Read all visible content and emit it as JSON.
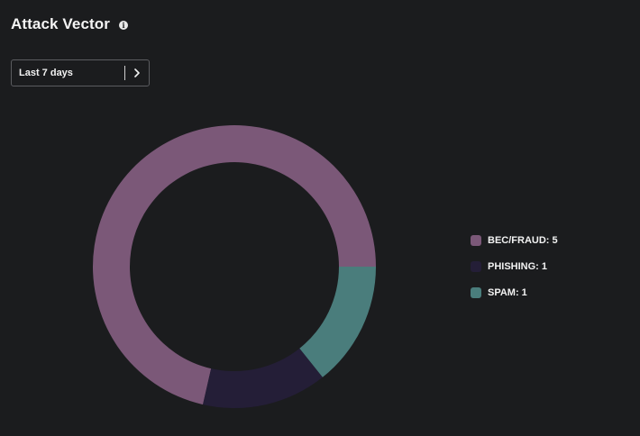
{
  "header": {
    "title": "Attack Vector",
    "info_icon": "info-icon"
  },
  "range_select": {
    "label": "Last 7 days",
    "next_icon": "chevron-right-icon"
  },
  "chart_data": {
    "type": "pie",
    "variant": "donut",
    "categories": [
      "BEC/FRAUD",
      "PHISHING",
      "SPAM"
    ],
    "values": [
      5,
      1,
      1
    ],
    "colors": [
      "#7b5878",
      "#241e37",
      "#4a7d7c"
    ],
    "legend_labels": [
      "BEC/FRAUD: 5",
      "PHISHING: 1",
      "SPAM: 1"
    ],
    "legend_placement": "right"
  }
}
